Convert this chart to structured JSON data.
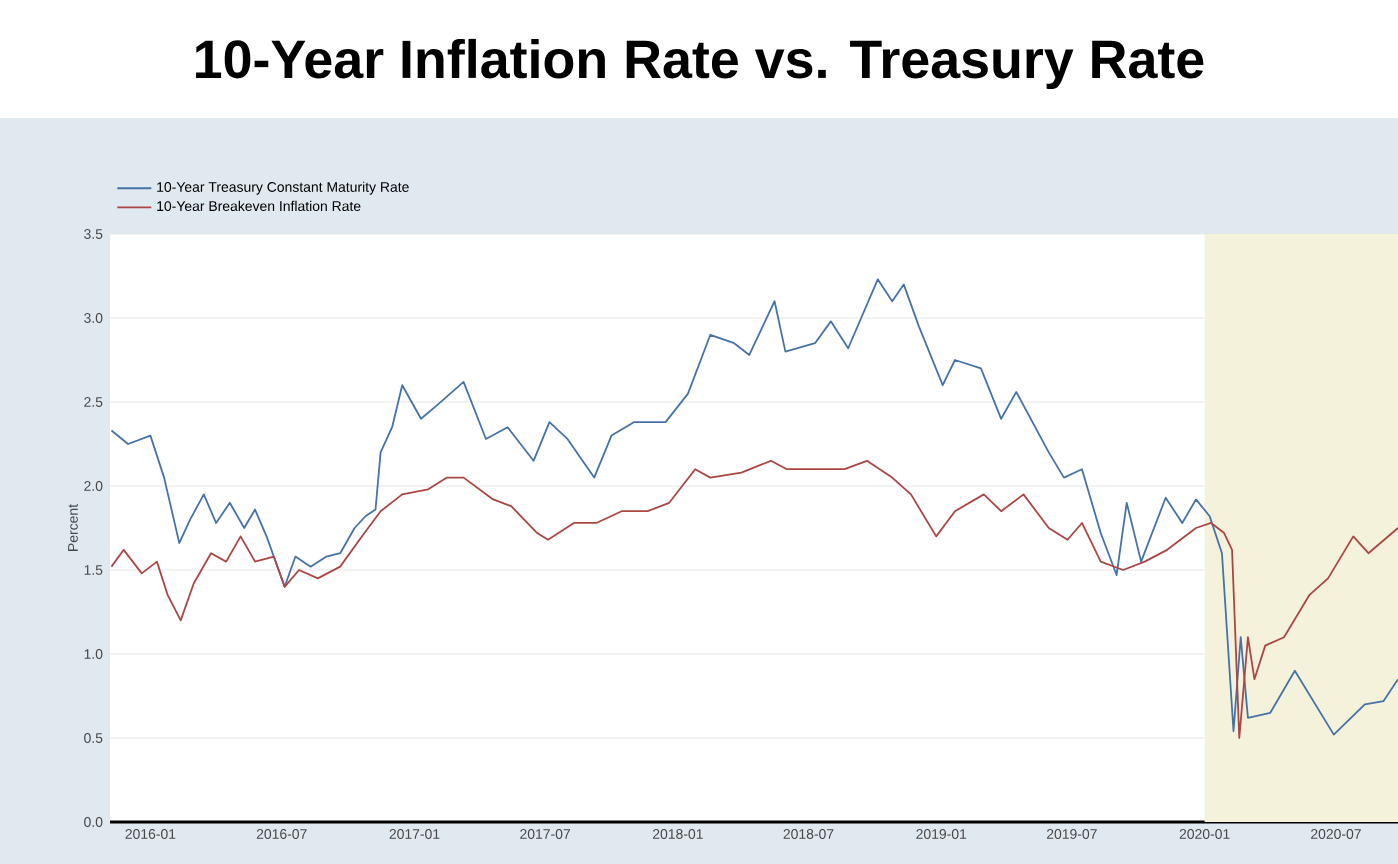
{
  "chart_data": {
    "type": "line",
    "title": "10-Year Inflation Rate vs. Treasury Rate",
    "ylabel": "Percent",
    "xlim": [
      "2015-11-06",
      "2020-09-25"
    ],
    "ylim": [
      0,
      3.5
    ],
    "xticks": [
      "2016-01",
      "2016-07",
      "2017-01",
      "2017-07",
      "2018-01",
      "2018-07",
      "2019-01",
      "2019-07",
      "2020-01",
      "2020-07"
    ],
    "yticks": [
      {
        "value": 0,
        "label": "0.0"
      },
      {
        "value": 0.5,
        "label": "0.5"
      },
      {
        "value": 1,
        "label": "1.0"
      },
      {
        "value": 1.5,
        "label": "1.5"
      },
      {
        "value": 2,
        "label": "2.0"
      },
      {
        "value": 2.5,
        "label": "2.5"
      },
      {
        "value": 3,
        "label": "3.0"
      },
      {
        "value": 3.5,
        "label": "3.5"
      }
    ],
    "grid": "y",
    "legend": "top left",
    "bands": [
      {
        "axis": "x",
        "from": "2020-01-01",
        "to": "2020-09-25",
        "color": "#f5f2dc"
      }
    ],
    "series": [
      {
        "name": "10-Year Treasury Constant Maturity Rate",
        "color": "#4572a7",
        "x": [
          "2015-11-08",
          "2015-12-01",
          "2016-01-01",
          "2016-01-20",
          "2016-02-10",
          "2016-02-25",
          "2016-03-15",
          "2016-04-01",
          "2016-04-20",
          "2016-05-10",
          "2016-05-25",
          "2016-06-10",
          "2016-07-05",
          "2016-07-20",
          "2016-08-10",
          "2016-09-01",
          "2016-09-20",
          "2016-10-10",
          "2016-10-25",
          "2016-11-08",
          "2016-11-15",
          "2016-12-01",
          "2016-12-15",
          "2017-01-10",
          "2017-02-01",
          "2017-03-10",
          "2017-04-10",
          "2017-05-10",
          "2017-06-15",
          "2017-07-07",
          "2017-08-01",
          "2017-09-07",
          "2017-10-01",
          "2017-11-01",
          "2017-12-15",
          "2018-01-15",
          "2018-02-15",
          "2018-03-20",
          "2018-04-10",
          "2018-05-15",
          "2018-05-30",
          "2018-07-10",
          "2018-08-01",
          "2018-08-25",
          "2018-10-05",
          "2018-10-25",
          "2018-11-10",
          "2018-12-01",
          "2019-01-03",
          "2019-01-20",
          "2019-02-25",
          "2019-03-25",
          "2019-04-15",
          "2019-05-30",
          "2019-06-20",
          "2019-07-15",
          "2019-08-10",
          "2019-09-01",
          "2019-09-15",
          "2019-10-05",
          "2019-11-08",
          "2019-12-01",
          "2019-12-20",
          "2020-01-08",
          "2020-01-25",
          "2020-02-10",
          "2020-02-20",
          "2020-03-01",
          "2020-04-01",
          "2020-05-05",
          "2020-06-28",
          "2020-08-10",
          "2020-09-05",
          "2020-09-25"
        ],
        "values": [
          2.33,
          2.25,
          2.3,
          2.05,
          1.66,
          1.8,
          1.95,
          1.78,
          1.9,
          1.75,
          1.86,
          1.7,
          1.4,
          1.58,
          1.52,
          1.58,
          1.6,
          1.75,
          1.82,
          1.86,
          2.2,
          2.35,
          2.6,
          2.4,
          2.48,
          2.62,
          2.28,
          2.35,
          2.15,
          2.38,
          2.28,
          2.05,
          2.3,
          2.38,
          2.38,
          2.55,
          2.9,
          2.85,
          2.78,
          3.1,
          2.8,
          2.85,
          2.98,
          2.82,
          3.23,
          3.1,
          3.2,
          2.95,
          2.6,
          2.75,
          2.7,
          2.4,
          2.56,
          2.2,
          2.05,
          2.1,
          1.72,
          1.47,
          1.9,
          1.55,
          1.93,
          1.78,
          1.92,
          1.82,
          1.6,
          0.54,
          1.1,
          0.62,
          0.65,
          0.9,
          0.52,
          0.7,
          0.72,
          0.85
        ]
      },
      {
        "name": "10-Year Breakeven Inflation Rate",
        "color": "#aa4643",
        "x": [
          "2015-11-08",
          "2015-11-25",
          "2015-12-20",
          "2016-01-10",
          "2016-01-25",
          "2016-02-12",
          "2016-03-01",
          "2016-03-25",
          "2016-04-15",
          "2016-05-05",
          "2016-05-25",
          "2016-06-20",
          "2016-07-05",
          "2016-07-25",
          "2016-08-20",
          "2016-09-20",
          "2016-10-20",
          "2016-11-15",
          "2016-12-15",
          "2017-01-20",
          "2017-02-15",
          "2017-03-10",
          "2017-04-20",
          "2017-05-15",
          "2017-06-20",
          "2017-07-05",
          "2017-08-10",
          "2017-09-10",
          "2017-10-15",
          "2017-11-20",
          "2017-12-20",
          "2018-01-25",
          "2018-02-15",
          "2018-03-30",
          "2018-05-10",
          "2018-06-01",
          "2018-07-15",
          "2018-08-20",
          "2018-09-20",
          "2018-10-25",
          "2018-11-20",
          "2018-12-25",
          "2019-01-20",
          "2019-03-01",
          "2019-03-25",
          "2019-04-25",
          "2019-05-30",
          "2019-06-25",
          "2019-07-15",
          "2019-08-10",
          "2019-09-10",
          "2019-10-10",
          "2019-11-10",
          "2019-12-20",
          "2020-01-10",
          "2020-01-28",
          "2020-02-08",
          "2020-02-18",
          "2020-03-01",
          "2020-03-10",
          "2020-03-25",
          "2020-04-20",
          "2020-05-25",
          "2020-06-20",
          "2020-07-25",
          "2020-08-15",
          "2020-09-25"
        ],
        "values": [
          1.52,
          1.62,
          1.48,
          1.55,
          1.35,
          1.2,
          1.42,
          1.6,
          1.55,
          1.7,
          1.55,
          1.58,
          1.4,
          1.5,
          1.45,
          1.52,
          1.7,
          1.85,
          1.95,
          1.98,
          2.05,
          2.05,
          1.92,
          1.88,
          1.72,
          1.68,
          1.78,
          1.78,
          1.85,
          1.85,
          1.9,
          2.1,
          2.05,
          2.08,
          2.15,
          2.1,
          2.1,
          2.1,
          2.15,
          2.05,
          1.95,
          1.7,
          1.85,
          1.95,
          1.85,
          1.95,
          1.75,
          1.68,
          1.78,
          1.55,
          1.5,
          1.55,
          1.62,
          1.75,
          1.78,
          1.72,
          1.62,
          0.5,
          1.1,
          0.85,
          1.05,
          1.1,
          1.35,
          1.45,
          1.7,
          1.6,
          1.75
        ]
      }
    ]
  }
}
